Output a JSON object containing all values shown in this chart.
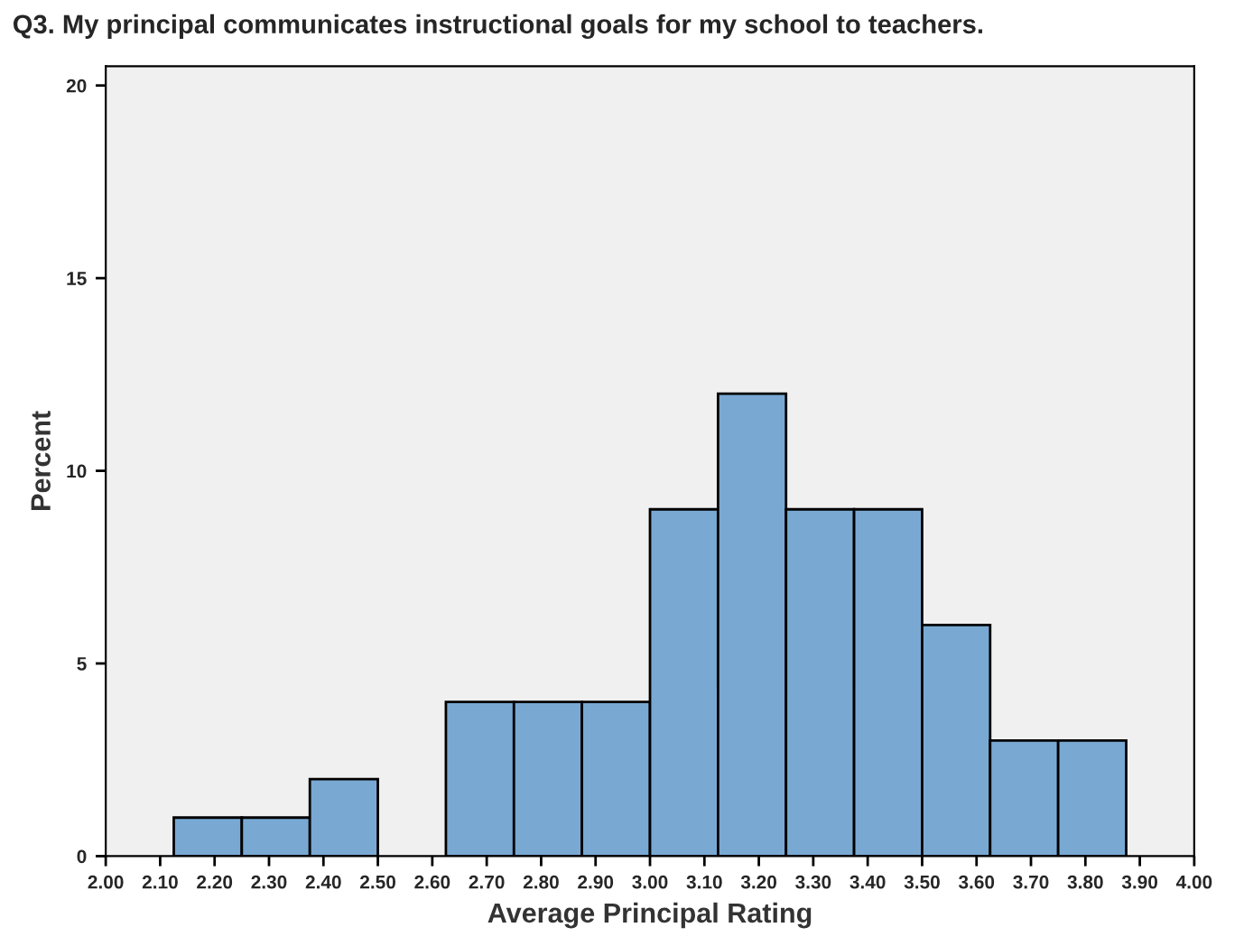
{
  "chart_data": {
    "type": "histogram",
    "title": "Q3. My principal communicates instructional goals for my school to teachers.",
    "xlabel": "Average Principal Rating",
    "ylabel": "Percent",
    "bins": [
      2.125,
      2.25,
      2.375,
      2.5,
      2.625,
      2.75,
      2.875,
      3.0,
      3.125,
      3.25,
      3.375,
      3.5,
      3.625,
      3.75,
      3.875
    ],
    "values": [
      1,
      1,
      2,
      0,
      4,
      4,
      4,
      9,
      12,
      9,
      9,
      6,
      3,
      3
    ],
    "color": "#79a9d3",
    "xlim": [
      2.0,
      4.0
    ],
    "ylim": [
      0,
      20.5
    ],
    "xticks": [
      {
        "value": 2.0,
        "label": "2.00"
      },
      {
        "value": 2.1,
        "label": "2.10"
      },
      {
        "value": 2.2,
        "label": "2.20"
      },
      {
        "value": 2.3,
        "label": "2.30"
      },
      {
        "value": 2.4,
        "label": "2.40"
      },
      {
        "value": 2.5,
        "label": "2.50"
      },
      {
        "value": 2.6,
        "label": "2.60"
      },
      {
        "value": 2.7,
        "label": "2.70"
      },
      {
        "value": 2.8,
        "label": "2.80"
      },
      {
        "value": 2.9,
        "label": "2.90"
      },
      {
        "value": 3.0,
        "label": "3.00"
      },
      {
        "value": 3.1,
        "label": "3.10"
      },
      {
        "value": 3.2,
        "label": "3.20"
      },
      {
        "value": 3.3,
        "label": "3.30"
      },
      {
        "value": 3.4,
        "label": "3.40"
      },
      {
        "value": 3.5,
        "label": "3.50"
      },
      {
        "value": 3.6,
        "label": "3.60"
      },
      {
        "value": 3.7,
        "label": "3.70"
      },
      {
        "value": 3.8,
        "label": "3.80"
      },
      {
        "value": 3.9,
        "label": "3.90"
      },
      {
        "value": 4.0,
        "label": "4.00"
      }
    ],
    "yticks": [
      0,
      5,
      10,
      15,
      20
    ],
    "grid": false
  }
}
